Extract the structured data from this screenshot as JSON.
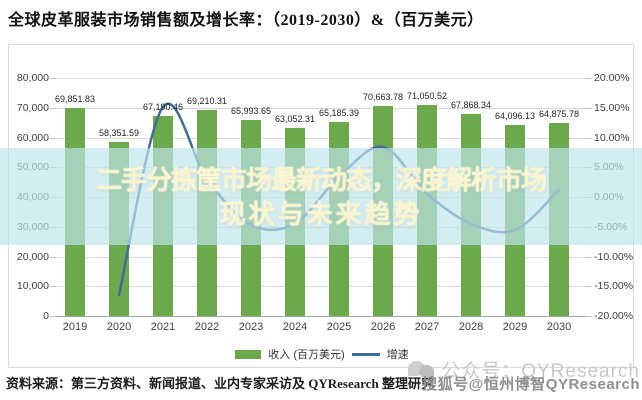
{
  "chart_data": {
    "type": "bar",
    "combo": "bar+line",
    "title": "全球皮革服装市场销售额及增长率：（2019-2030）&（百万美元）",
    "categories": [
      "2019",
      "2020",
      "2021",
      "2022",
      "2023",
      "2024",
      "2025",
      "2026",
      "2027",
      "2028",
      "2029",
      "2030"
    ],
    "series": [
      {
        "name": "收入 (百万美元)",
        "type": "bar",
        "values": [
          69851.83,
          58351.59,
          67190.46,
          69210.31,
          65993.65,
          63052.31,
          65185.39,
          70663.78,
          71050.52,
          67868.34,
          64096.13,
          64875.78
        ],
        "labels": [
          "69,851.83",
          "58,351.59",
          "67,190.46",
          "69,210.31",
          "65,993.65",
          "63,052.31",
          "65,185.39",
          "70,663.78",
          "71,050.52",
          "67,868.34",
          "64,096.13",
          "64,875.78"
        ]
      },
      {
        "name": "增速",
        "type": "line",
        "values_pct": [
          null,
          -16.46,
          15.15,
          3.01,
          -4.65,
          -4.46,
          3.38,
          8.4,
          0.55,
          -4.48,
          -5.56,
          1.22
        ]
      }
    ],
    "y_left": {
      "min": 0,
      "max": 80000,
      "ticks": [
        "80,000",
        "70,000",
        "60,000",
        "50,000",
        "40,000",
        "30,000",
        "20,000",
        "10,000",
        "0"
      ]
    },
    "y_right": {
      "min": -20,
      "max": 20,
      "ticks": [
        "20.00%",
        "15.00%",
        "10.00%",
        "5.00%",
        "0.00%",
        "-5.00%",
        "-10.00%",
        "-15.00%",
        "-20.00%"
      ]
    },
    "grid": true,
    "legend_position": "bottom",
    "xlabel": "",
    "ylabel": ""
  },
  "legend": {
    "revenue_label": "收入 (百万美元)",
    "growth_label": "增速"
  },
  "overlay": {
    "line1": "二手分拣筐市场最新动态，深度解析市场",
    "line2": "现状与未来趋势"
  },
  "footer": {
    "source_text": "资料来源：第三方资料、新闻报道、业内专家采访及 QYResearch 整理研究"
  },
  "watermarks": {
    "wechat": "公众号：QYResearch",
    "sohu": "搜狐号@恒州博智QYResearch",
    "wechat_icon": "chat-bubbles-icon"
  },
  "colors": {
    "bar_green": "#6CA94C",
    "line_blue": "#3E6D9C",
    "band_bg": "rgba(190,229,234,0.68)",
    "overlay_text": "#FBF4CC",
    "grid": "#D9D9D9",
    "axis_text": "#3F3F3F",
    "watermark_light": "#C8C8C8",
    "watermark_dark": "#8F8F8F"
  }
}
